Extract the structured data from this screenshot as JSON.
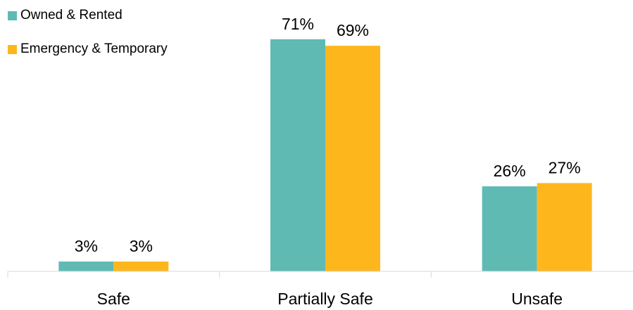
{
  "chart_data": {
    "type": "bar",
    "title": "",
    "xlabel": "",
    "ylabel": "",
    "categories": [
      "Safe",
      "Partially Safe",
      "Unsafe"
    ],
    "series": [
      {
        "name": "Owned & Rented",
        "values": [
          3,
          71,
          26
        ],
        "labels": [
          "3%",
          "71%",
          "26%"
        ],
        "color": "#5FBAB4"
      },
      {
        "name": "Emergency & Temporary",
        "values": [
          3,
          69,
          27
        ],
        "labels": [
          "3%",
          "69%",
          "27%"
        ],
        "color": "#FDB71D"
      }
    ],
    "ylim": [
      0,
      83
    ],
    "unit": "%",
    "grid": false,
    "legend_position": "top-left"
  }
}
